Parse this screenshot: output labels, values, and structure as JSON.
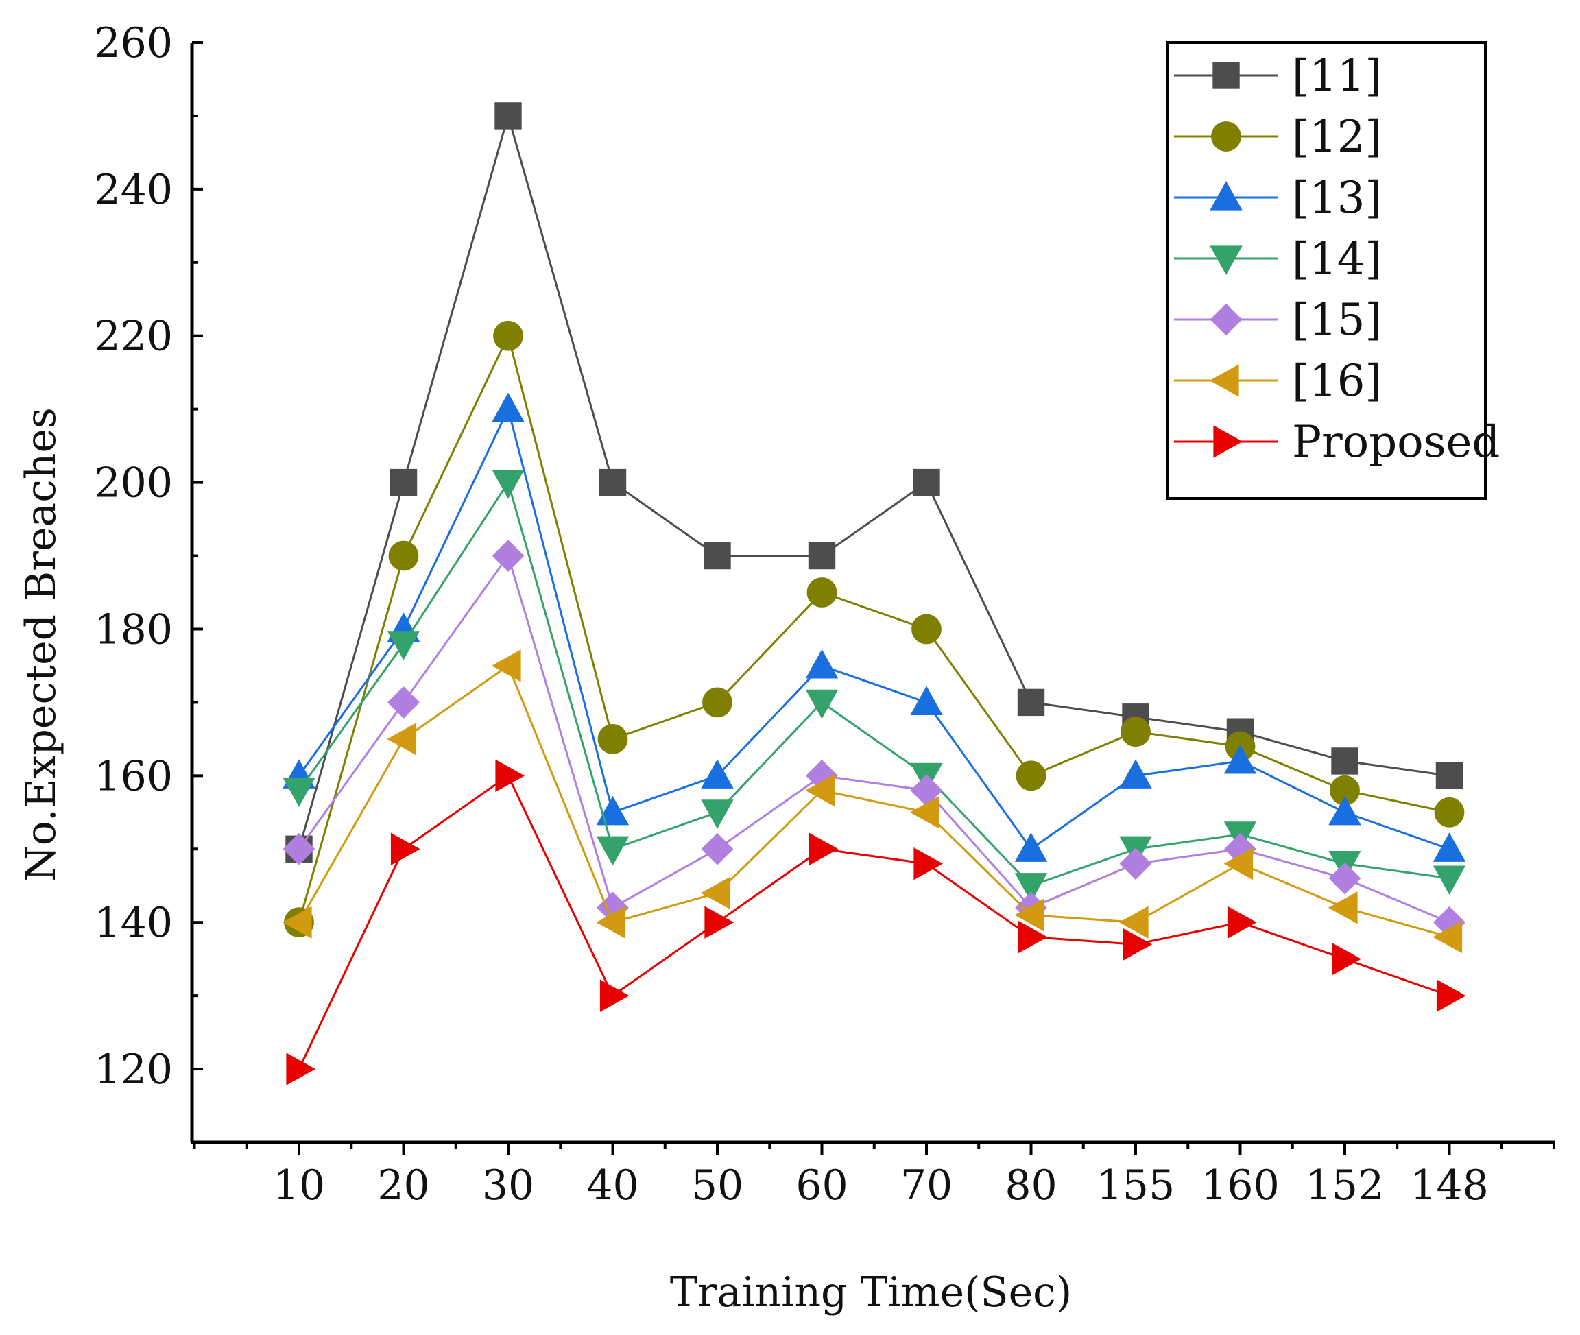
{
  "chart_data": {
    "type": "line",
    "xlabel": "Training Time(Sec)",
    "ylabel": "No.Expected Breaches",
    "categories": [
      "10",
      "20",
      "30",
      "40",
      "50",
      "60",
      "70",
      "80",
      "155",
      "160",
      "152",
      "148"
    ],
    "ylim": [
      110,
      260
    ],
    "yticks": [
      120,
      140,
      160,
      180,
      200,
      220,
      240,
      260
    ],
    "grid": false,
    "legend_position": "top-right",
    "series": [
      {
        "name": "[11]",
        "color": "#4d4d4d",
        "marker": "square",
        "values": [
          150,
          200,
          250,
          200,
          190,
          190,
          200,
          170,
          168,
          166,
          162,
          160
        ]
      },
      {
        "name": "[12]",
        "color": "#7f7f00",
        "marker": "circle",
        "values": [
          140,
          190,
          220,
          165,
          170,
          185,
          180,
          160,
          166,
          164,
          158,
          155
        ]
      },
      {
        "name": "[13]",
        "color": "#1a6fe0",
        "marker": "triangle-up",
        "values": [
          160,
          180,
          210,
          155,
          160,
          175,
          170,
          150,
          160,
          162,
          155,
          150
        ]
      },
      {
        "name": "[14]",
        "color": "#33a36b",
        "marker": "triangle-down",
        "values": [
          158,
          178,
          200,
          150,
          155,
          170,
          160,
          145,
          150,
          152,
          148,
          146
        ]
      },
      {
        "name": "[15]",
        "color": "#b07fe0",
        "marker": "diamond",
        "values": [
          150,
          170,
          190,
          142,
          150,
          160,
          158,
          142,
          148,
          150,
          146,
          140
        ]
      },
      {
        "name": "[16]",
        "color": "#d19a10",
        "marker": "triangle-left",
        "values": [
          140,
          165,
          175,
          140,
          144,
          158,
          155,
          141,
          140,
          148,
          142,
          138
        ]
      },
      {
        "name": "Proposed",
        "color": "#e60000",
        "marker": "triangle-right",
        "values": [
          120,
          150,
          160,
          130,
          140,
          150,
          148,
          138,
          137,
          140,
          135,
          130
        ]
      }
    ]
  }
}
